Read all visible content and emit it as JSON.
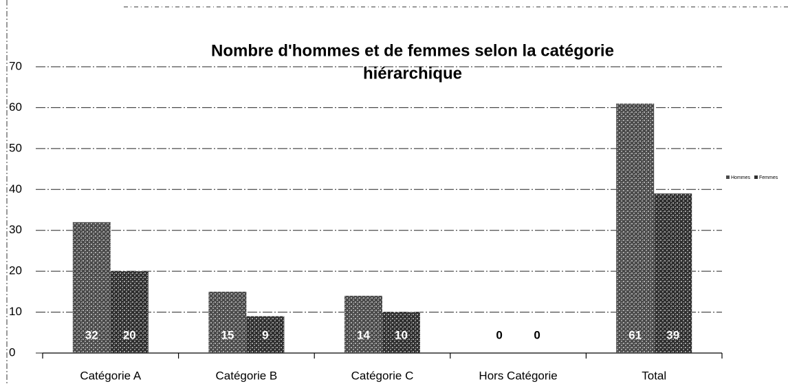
{
  "chart_data": {
    "type": "bar",
    "title": [
      "Nombre d'hommes et de femmes selon la catégorie",
      "hiérarchique"
    ],
    "categories": [
      "Catégorie A",
      "Catégorie B",
      "Catégorie C",
      "Hors Catégorie",
      "Total"
    ],
    "series": [
      {
        "name": "Hommes",
        "color": "#4a4a4a",
        "values": [
          32,
          15,
          14,
          0,
          61
        ]
      },
      {
        "name": "Femmes",
        "color": "#2e2e2e",
        "values": [
          20,
          9,
          10,
          0,
          39
        ]
      }
    ],
    "ylim": [
      0,
      70
    ],
    "yticks": [
      0,
      10,
      20,
      30,
      40,
      50,
      60,
      70
    ],
    "grid": true,
    "legend": "right"
  }
}
